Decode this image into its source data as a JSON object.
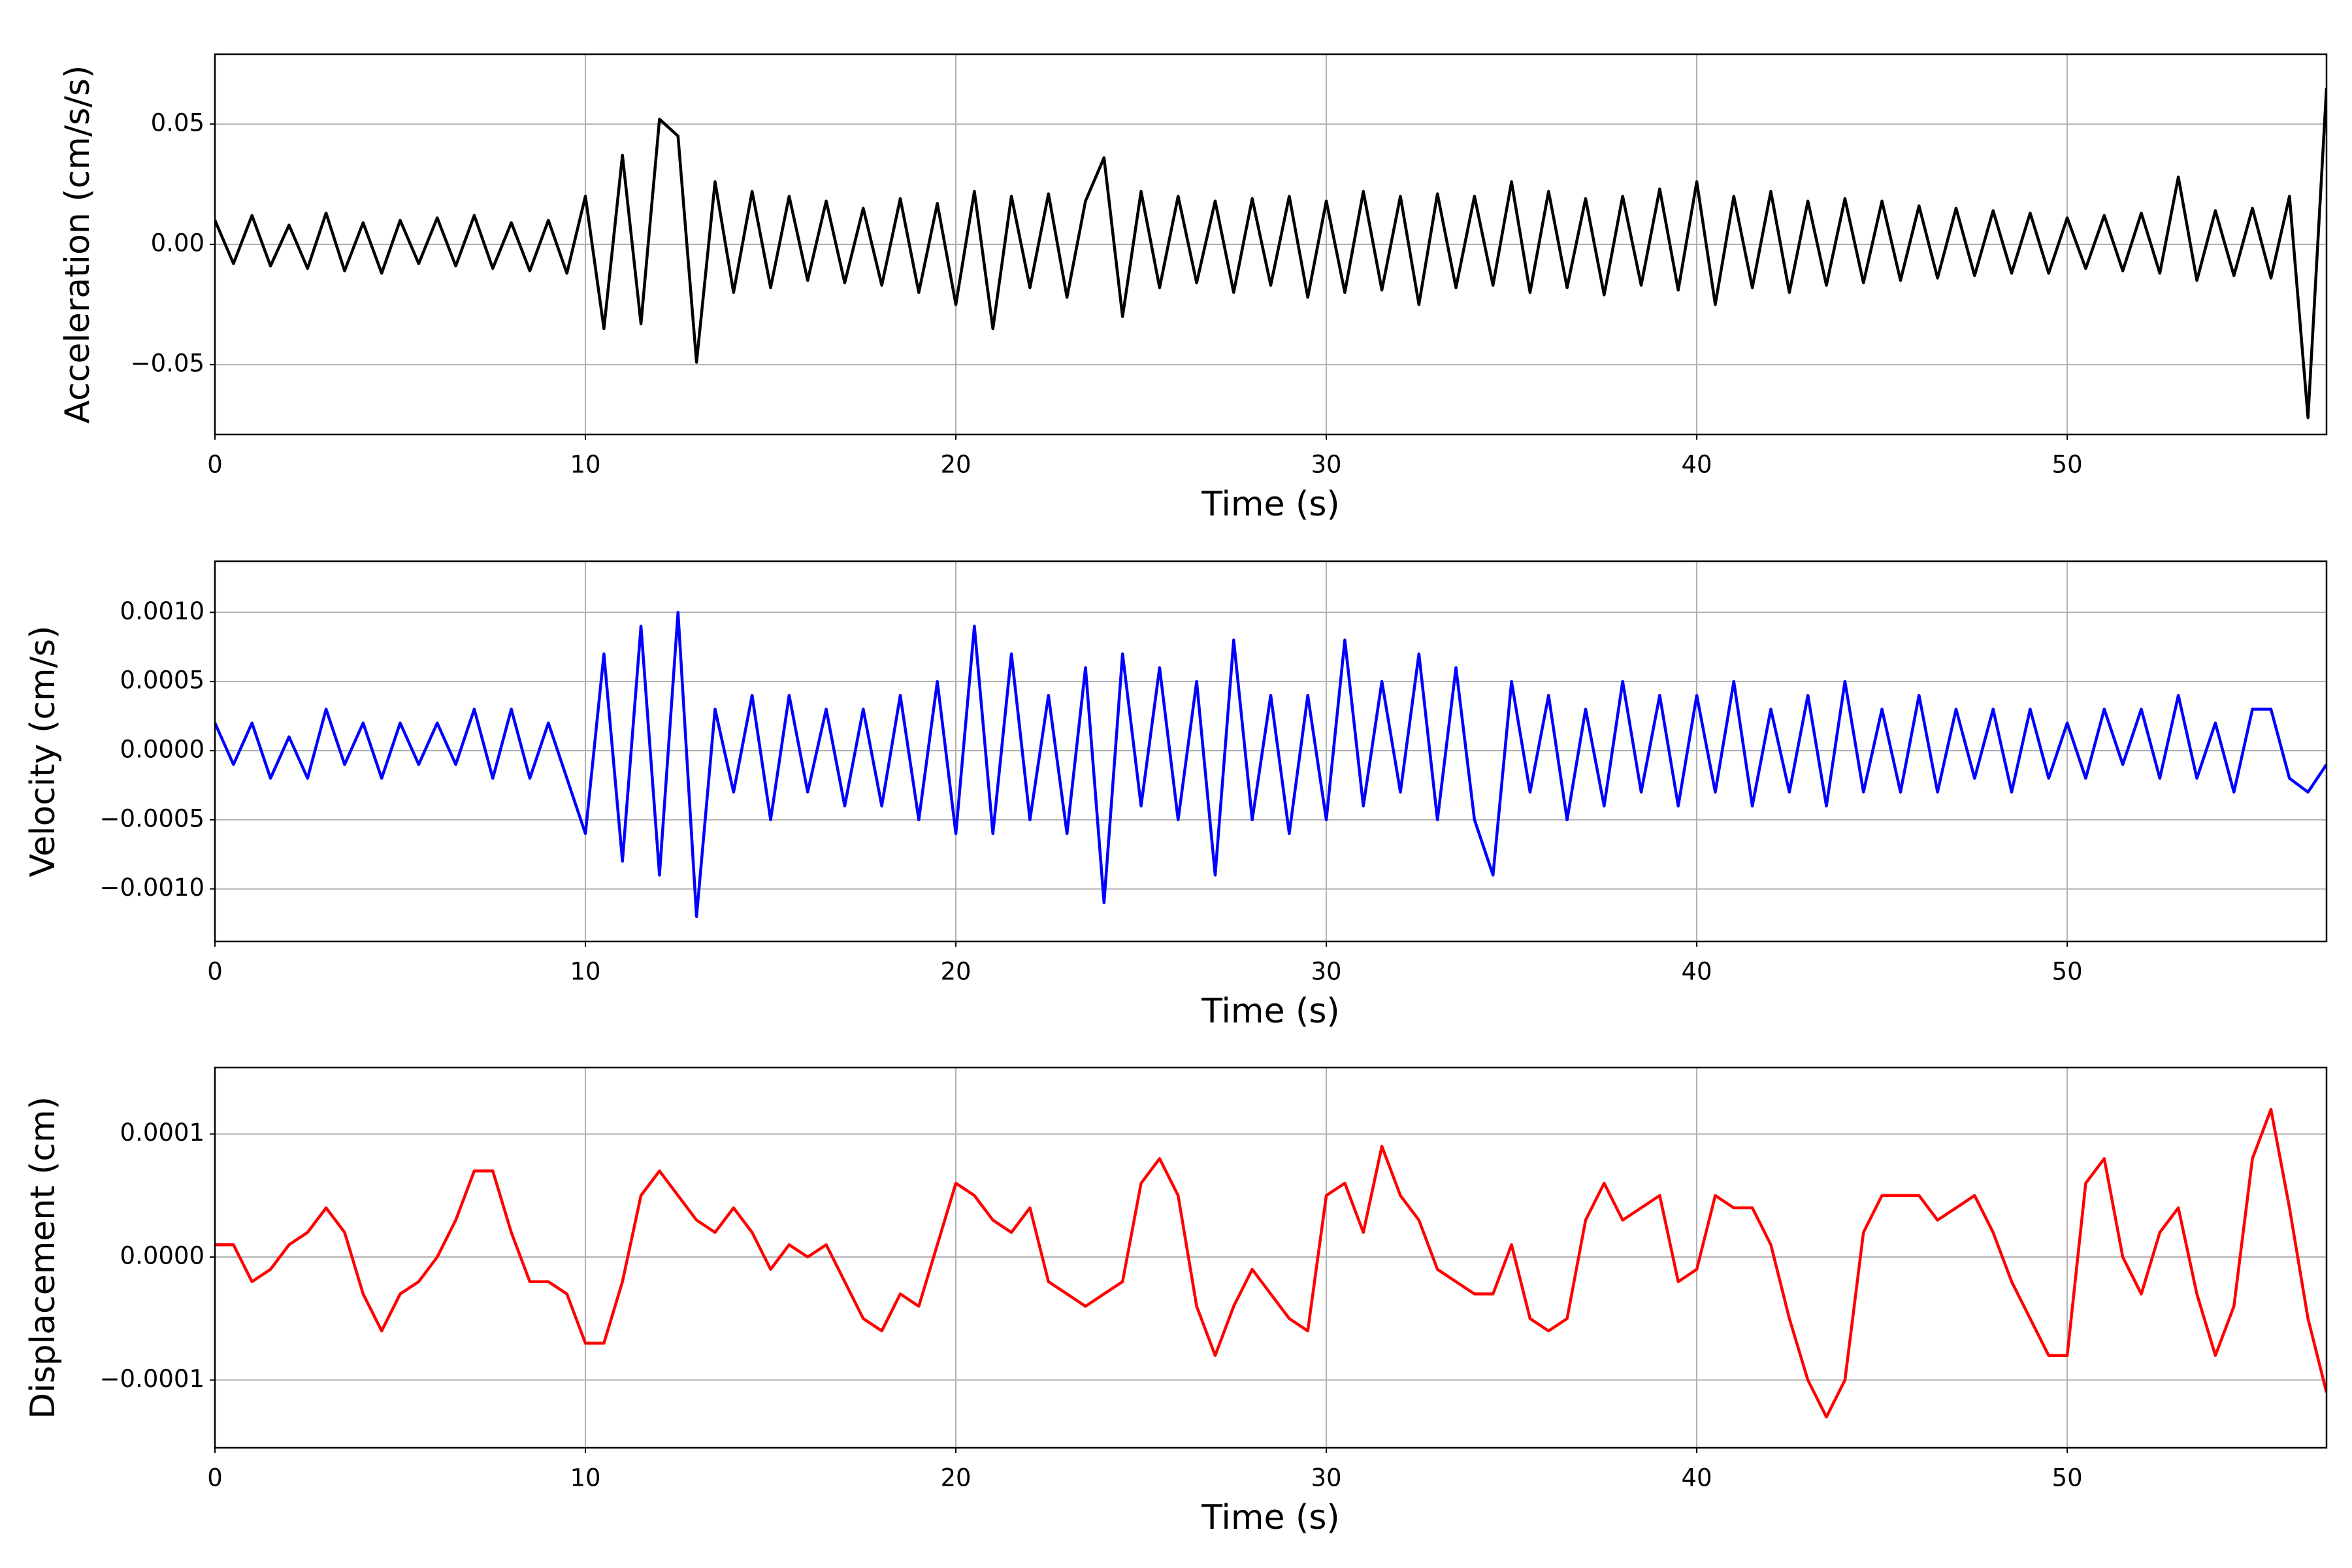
{
  "chart_data": [
    {
      "type": "line",
      "x_label": "Time (s)",
      "y_label": "Acceleration (cm/s/s)",
      "x": [
        0,
        0.5,
        1,
        1.5,
        2,
        2.5,
        3,
        3.5,
        4,
        4.5,
        5,
        5.5,
        6,
        6.5,
        7,
        7.5,
        8,
        8.5,
        9,
        9.5,
        10,
        10.5,
        11,
        11.5,
        12,
        12.5,
        13,
        13.5,
        14,
        14.5,
        15,
        15.5,
        16,
        16.5,
        17,
        17.5,
        18,
        18.5,
        19,
        19.5,
        20,
        20.5,
        21,
        21.5,
        22,
        22.5,
        23,
        23.5,
        24,
        24.5,
        25,
        25.5,
        26,
        26.5,
        27,
        27.5,
        28,
        28.5,
        29,
        29.5,
        30,
        30.5,
        31,
        31.5,
        32,
        32.5,
        33,
        33.5,
        34,
        34.5,
        35,
        35.5,
        36,
        36.5,
        37,
        37.5,
        38,
        38.5,
        39,
        39.5,
        40,
        40.5,
        41,
        41.5,
        42,
        42.5,
        43,
        43.5,
        44,
        44.5,
        45,
        45.5,
        46,
        46.5,
        47,
        47.5,
        48,
        48.5,
        49,
        49.5,
        50,
        50.5,
        51,
        51.5,
        52,
        52.5,
        53,
        53.5,
        54,
        54.5,
        55,
        55.5,
        56,
        56.5,
        57
      ],
      "series": [
        {
          "color": "#000000",
          "values": [
            0.01,
            -0.008,
            0.012,
            -0.009,
            0.008,
            -0.01,
            0.013,
            -0.011,
            0.009,
            -0.012,
            0.01,
            -0.008,
            0.011,
            -0.009,
            0.012,
            -0.01,
            0.009,
            -0.011,
            0.01,
            -0.012,
            0.02,
            -0.035,
            0.037,
            -0.033,
            0.052,
            0.045,
            -0.049,
            0.026,
            -0.02,
            0.022,
            -0.018,
            0.02,
            -0.015,
            0.018,
            -0.016,
            0.015,
            -0.017,
            0.019,
            -0.02,
            0.017,
            -0.025,
            0.022,
            -0.035,
            0.02,
            -0.018,
            0.021,
            -0.022,
            0.018,
            0.036,
            -0.03,
            0.022,
            -0.018,
            0.02,
            -0.016,
            0.018,
            -0.02,
            0.019,
            -0.017,
            0.02,
            -0.022,
            0.018,
            -0.02,
            0.022,
            -0.019,
            0.02,
            -0.025,
            0.021,
            -0.018,
            0.02,
            -0.017,
            0.026,
            -0.02,
            0.022,
            -0.018,
            0.019,
            -0.021,
            0.02,
            -0.017,
            0.023,
            -0.019,
            0.026,
            -0.025,
            0.02,
            -0.018,
            0.022,
            -0.02,
            0.018,
            -0.017,
            0.019,
            -0.016,
            0.018,
            -0.015,
            0.016,
            -0.014,
            0.015,
            -0.013,
            0.014,
            -0.012,
            0.013,
            -0.012,
            0.011,
            -0.01,
            0.012,
            -0.011,
            0.013,
            -0.012,
            0.028,
            -0.015,
            0.014,
            -0.013,
            0.015,
            -0.014,
            0.02,
            -0.072,
            0.065
          ]
        }
      ],
      "xlim": [
        0,
        57
      ],
      "xticks": [
        0,
        10,
        20,
        30,
        40,
        50
      ],
      "ylim": [
        -0.079,
        0.079
      ],
      "yticks": [
        {
          "value": -0.05,
          "label": "−0.05"
        },
        {
          "value": 0,
          "label": "0.00"
        },
        0.05
      ],
      "grid": true
    },
    {
      "type": "line",
      "x_label": "Time (s)",
      "y_label": "Velocity (cm/s)",
      "x": [
        0,
        0.5,
        1,
        1.5,
        2,
        2.5,
        3,
        3.5,
        4,
        4.5,
        5,
        5.5,
        6,
        6.5,
        7,
        7.5,
        8,
        8.5,
        9,
        9.5,
        10,
        10.5,
        11,
        11.5,
        12,
        12.5,
        13,
        13.5,
        14,
        14.5,
        15,
        15.5,
        16,
        16.5,
        17,
        17.5,
        18,
        18.5,
        19,
        19.5,
        20,
        20.5,
        21,
        21.5,
        22,
        22.5,
        23,
        23.5,
        24,
        24.5,
        25,
        25.5,
        26,
        26.5,
        27,
        27.5,
        28,
        28.5,
        29,
        29.5,
        30,
        30.5,
        31,
        31.5,
        32,
        32.5,
        33,
        33.5,
        34,
        34.5,
        35,
        35.5,
        36,
        36.5,
        37,
        37.5,
        38,
        38.5,
        39,
        39.5,
        40,
        40.5,
        41,
        41.5,
        42,
        42.5,
        43,
        43.5,
        44,
        44.5,
        45,
        45.5,
        46,
        46.5,
        47,
        47.5,
        48,
        48.5,
        49,
        49.5,
        50,
        50.5,
        51,
        51.5,
        52,
        52.5,
        53,
        53.5,
        54,
        54.5,
        55,
        55.5,
        56,
        56.5,
        57
      ],
      "series": [
        {
          "color": "#0000ff",
          "values": [
            0.0002,
            -0.0001,
            0.0002,
            -0.0002,
            0.0001,
            -0.0002,
            0.0003,
            -0.0001,
            0.0002,
            -0.0002,
            0.0002,
            -0.0001,
            0.0002,
            -0.0001,
            0.0003,
            -0.0002,
            0.0003,
            -0.0002,
            0.0002,
            -0.0002,
            -0.0006,
            0.0007,
            -0.0008,
            0.0009,
            -0.0009,
            0.001,
            -0.0012,
            0.0003,
            -0.0003,
            0.0004,
            -0.0005,
            0.0004,
            -0.0003,
            0.0003,
            -0.0004,
            0.0003,
            -0.0004,
            0.0004,
            -0.0005,
            0.0005,
            -0.0006,
            0.0009,
            -0.0006,
            0.0007,
            -0.0005,
            0.0004,
            -0.0006,
            0.0006,
            -0.0011,
            0.0007,
            -0.0004,
            0.0006,
            -0.0005,
            0.0005,
            -0.0009,
            0.0008,
            -0.0005,
            0.0004,
            -0.0006,
            0.0004,
            -0.0005,
            0.0008,
            -0.0004,
            0.0005,
            -0.0003,
            0.0007,
            -0.0005,
            0.0006,
            -0.0005,
            -0.0009,
            0.0005,
            -0.0003,
            0.0004,
            -0.0005,
            0.0003,
            -0.0004,
            0.0005,
            -0.0003,
            0.0004,
            -0.0004,
            0.0004,
            -0.0003,
            0.0005,
            -0.0004,
            0.0003,
            -0.0003,
            0.0004,
            -0.0004,
            0.0005,
            -0.0003,
            0.0003,
            -0.0003,
            0.0004,
            -0.0003,
            0.0003,
            -0.0002,
            0.0003,
            -0.0003,
            0.0003,
            -0.0002,
            0.0002,
            -0.0002,
            0.0003,
            -0.0001,
            0.0003,
            -0.0002,
            0.0004,
            -0.0002,
            0.0002,
            -0.0003,
            0.0003,
            0.0003,
            -0.0002,
            -0.0003,
            -0.0001
          ]
        }
      ],
      "xlim": [
        0,
        57
      ],
      "xticks": [
        0,
        10,
        20,
        30,
        40,
        50
      ],
      "ylim": [
        -0.00138,
        0.00137
      ],
      "yticks": [
        {
          "value": -0.001,
          "label": "−0.0010"
        },
        {
          "value": -0.0005,
          "label": "−0.0005"
        },
        {
          "value": 0,
          "label": "0.0000"
        },
        {
          "value": 0.0005,
          "label": "0.0005"
        },
        {
          "value": 0.001,
          "label": "0.0010"
        }
      ],
      "grid": true
    },
    {
      "type": "line",
      "x_label": "Time (s)",
      "y_label": "Displacement (cm)",
      "x": [
        0,
        0.5,
        1,
        1.5,
        2,
        2.5,
        3,
        3.5,
        4,
        4.5,
        5,
        5.5,
        6,
        6.5,
        7,
        7.5,
        8,
        8.5,
        9,
        9.5,
        10,
        10.5,
        11,
        11.5,
        12,
        12.5,
        13,
        13.5,
        14,
        14.5,
        15,
        15.5,
        16,
        16.5,
        17,
        17.5,
        18,
        18.5,
        19,
        19.5,
        20,
        20.5,
        21,
        21.5,
        22,
        22.5,
        23,
        23.5,
        24,
        24.5,
        25,
        25.5,
        26,
        26.5,
        27,
        27.5,
        28,
        28.5,
        29,
        29.5,
        30,
        30.5,
        31,
        31.5,
        32,
        32.5,
        33,
        33.5,
        34,
        34.5,
        35,
        35.5,
        36,
        36.5,
        37,
        37.5,
        38,
        38.5,
        39,
        39.5,
        40,
        40.5,
        41,
        41.5,
        42,
        42.5,
        43,
        43.5,
        44,
        44.5,
        45,
        45.5,
        46,
        46.5,
        47,
        47.5,
        48,
        48.5,
        49,
        49.5,
        50,
        50.5,
        51,
        51.5,
        52,
        52.5,
        53,
        53.5,
        54,
        54.5,
        55,
        55.5,
        56,
        56.5,
        57
      ],
      "series": [
        {
          "color": "#ff0000",
          "values": [
            1e-05,
            1e-05,
            -2e-05,
            -1e-05,
            1e-05,
            2e-05,
            4e-05,
            2e-05,
            -3e-05,
            -6e-05,
            -3e-05,
            -2e-05,
            0.0,
            3e-05,
            7e-05,
            7e-05,
            2e-05,
            -2e-05,
            -2e-05,
            -3e-05,
            -7e-05,
            -7e-05,
            -2e-05,
            5e-05,
            7e-05,
            5e-05,
            3e-05,
            2e-05,
            4e-05,
            2e-05,
            -1e-05,
            1e-05,
            0.0,
            1e-05,
            -2e-05,
            -5e-05,
            -6e-05,
            -3e-05,
            -4e-05,
            1e-05,
            6e-05,
            5e-05,
            3e-05,
            2e-05,
            4e-05,
            -2e-05,
            -3e-05,
            -4e-05,
            -3e-05,
            -2e-05,
            6e-05,
            8e-05,
            5e-05,
            -4e-05,
            -8e-05,
            -4e-05,
            -1e-05,
            -3e-05,
            -5e-05,
            -6e-05,
            5e-05,
            6e-05,
            2e-05,
            9e-05,
            5e-05,
            3e-05,
            -1e-05,
            -2e-05,
            -3e-05,
            -3e-05,
            1e-05,
            -5e-05,
            -6e-05,
            -5e-05,
            3e-05,
            6e-05,
            3e-05,
            4e-05,
            5e-05,
            -2e-05,
            -1e-05,
            5e-05,
            4e-05,
            4e-05,
            1e-05,
            -5e-05,
            -0.0001,
            -0.00013,
            -0.0001,
            2e-05,
            5e-05,
            5e-05,
            5e-05,
            3e-05,
            4e-05,
            5e-05,
            2e-05,
            -2e-05,
            -5e-05,
            -8e-05,
            -8e-05,
            6e-05,
            8e-05,
            0.0,
            -3e-05,
            2e-05,
            4e-05,
            -3e-05,
            -8e-05,
            -4e-05,
            8e-05,
            0.00012,
            4e-05,
            -5e-05,
            -0.00011
          ]
        }
      ],
      "xlim": [
        0,
        57
      ],
      "xticks": [
        0,
        10,
        20,
        30,
        40,
        50
      ],
      "ylim": [
        -0.000155,
        0.000154
      ],
      "yticks": [
        {
          "value": -0.0001,
          "label": "−0.0001"
        },
        {
          "value": 0,
          "label": "0.0000"
        },
        {
          "value": 0.0001,
          "label": "0.0001"
        }
      ],
      "grid": true
    }
  ]
}
